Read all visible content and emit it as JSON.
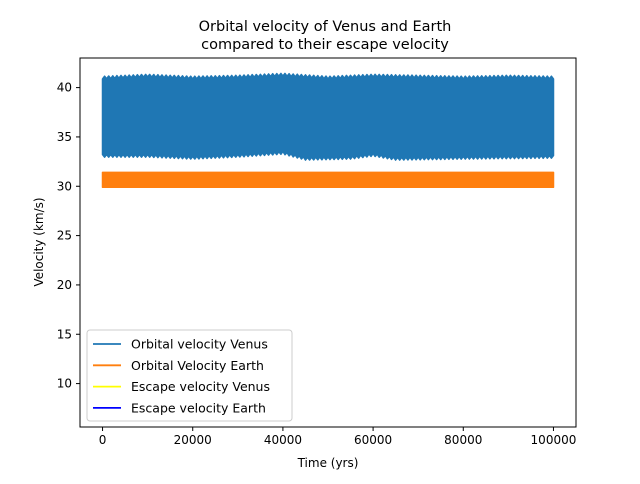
{
  "chart_data": {
    "type": "line",
    "title_line1": "Orbital velocity of Venus and Earth",
    "title_line2": "compared to their escape velocity",
    "xlabel": "Time (yrs)",
    "ylabel": "Velocity (km/s)",
    "xlim": [
      -5000,
      105000
    ],
    "ylim": [
      5.6,
      43.0
    ],
    "xticks": [
      0,
      20000,
      40000,
      60000,
      80000,
      100000
    ],
    "xtick_labels": [
      "0",
      "20000",
      "40000",
      "60000",
      "80000",
      "100000"
    ],
    "yticks": [
      10,
      15,
      20,
      25,
      30,
      35,
      40
    ],
    "ytick_labels": [
      "10",
      "15",
      "20",
      "25",
      "30",
      "35",
      "40"
    ],
    "grid": false,
    "legend_position": "lower-left",
    "series": [
      {
        "name": "Orbital velocity Venus",
        "color": "#1f77b4",
        "x_range": [
          0,
          100000
        ],
        "band_min": [
          {
            "x": 0,
            "y": 33.1
          },
          {
            "x": 10000,
            "y": 33.1
          },
          {
            "x": 20000,
            "y": 32.9
          },
          {
            "x": 30000,
            "y": 33.1
          },
          {
            "x": 40000,
            "y": 33.4
          },
          {
            "x": 45000,
            "y": 32.8
          },
          {
            "x": 55000,
            "y": 32.9
          },
          {
            "x": 60000,
            "y": 33.2
          },
          {
            "x": 65000,
            "y": 32.8
          },
          {
            "x": 80000,
            "y": 32.9
          },
          {
            "x": 100000,
            "y": 33.0
          }
        ],
        "band_max": [
          {
            "x": 0,
            "y": 41.0
          },
          {
            "x": 10000,
            "y": 41.2
          },
          {
            "x": 20000,
            "y": 41.0
          },
          {
            "x": 30000,
            "y": 41.1
          },
          {
            "x": 40000,
            "y": 41.3
          },
          {
            "x": 50000,
            "y": 41.0
          },
          {
            "x": 60000,
            "y": 41.2
          },
          {
            "x": 70000,
            "y": 41.1
          },
          {
            "x": 80000,
            "y": 41.0
          },
          {
            "x": 90000,
            "y": 41.1
          },
          {
            "x": 100000,
            "y": 41.0
          }
        ]
      },
      {
        "name": "Orbital Velocity Earth",
        "color": "#ff7f0e",
        "x_range": [
          0,
          100000
        ],
        "band_min": [
          {
            "x": 0,
            "y": 29.9
          },
          {
            "x": 100000,
            "y": 29.9
          }
        ],
        "band_max": [
          {
            "x": 0,
            "y": 31.4
          },
          {
            "x": 100000,
            "y": 31.4
          }
        ]
      },
      {
        "name": "Escape velocity Venus",
        "color": "#ffff00",
        "values": []
      },
      {
        "name": "Escape velocity Earth",
        "color": "#0000ff",
        "values": []
      }
    ]
  }
}
